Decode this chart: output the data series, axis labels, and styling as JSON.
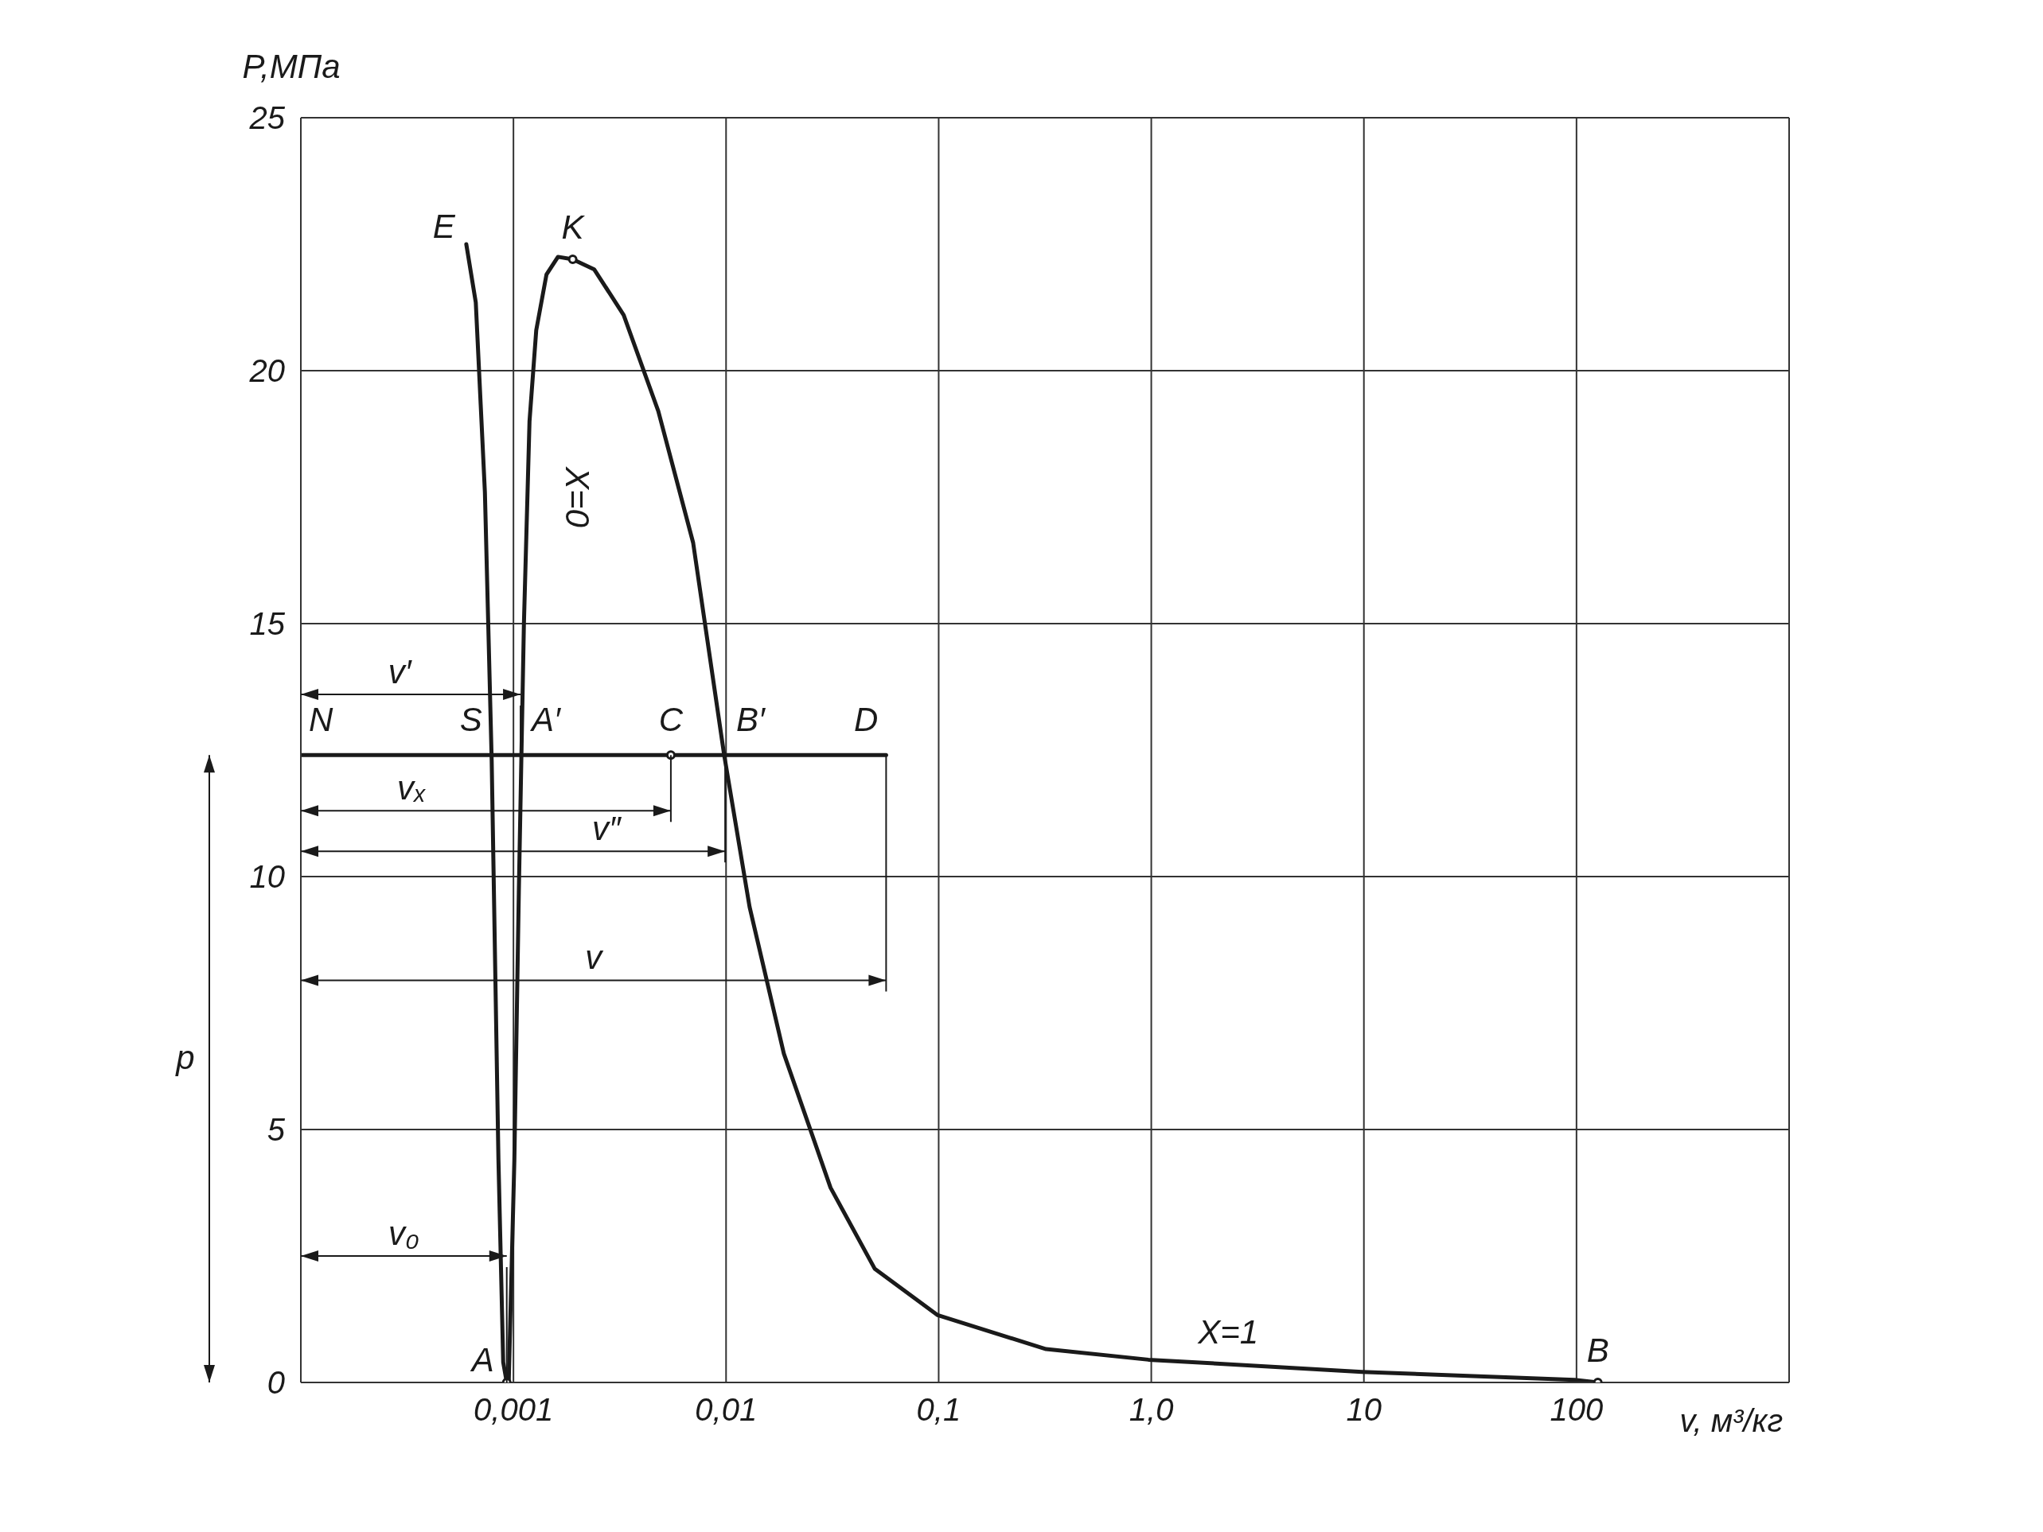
{
  "chart_data": {
    "type": "line",
    "xlabel": "v, м³/кг",
    "ylabel": "P,МПа",
    "log": "x",
    "grid": true,
    "line_style": "solid",
    "xlim": [
      0.0001,
      1000
    ],
    "ylim": [
      0,
      25
    ],
    "xticks": [
      {
        "value": 0.0001,
        "label": null
      },
      {
        "value": 0.001,
        "label": "0,001"
      },
      {
        "value": 0.01,
        "label": "0,01"
      },
      {
        "value": 0.1,
        "label": "0,1"
      },
      {
        "value": 1,
        "label": "1,0"
      },
      10,
      100,
      {
        "value": 1000,
        "label": null
      }
    ],
    "yticks": [
      0,
      5,
      10,
      15,
      20,
      25
    ],
    "series": [
      {
        "color": "#1a1a1a",
        "x": [
          0.00095,
          0.00101,
          0.00106,
          0.00112,
          0.00119,
          0.00128,
          0.00143,
          0.00162,
          0.0019
        ],
        "values": [
          0,
          4.4,
          9.7,
          15.0,
          19.0,
          20.8,
          21.9,
          22.25,
          22.2
        ]
      },
      {
        "color": "#1a1a1a",
        "x": [
          0.0019,
          0.0024,
          0.0033,
          0.0048,
          0.007,
          0.0098,
          0.0129,
          0.0187,
          0.031,
          0.05,
          0.099,
          0.32,
          0.97,
          9.8,
          98,
          126
        ],
        "values": [
          22.2,
          22.0,
          21.1,
          19.2,
          16.6,
          12.4,
          9.4,
          6.5,
          3.85,
          2.25,
          1.33,
          0.66,
          0.45,
          0.21,
          0.05,
          0
        ]
      },
      {
        "color": "#1a1a1a",
        "x": [
          0.0006,
          0.000665,
          0.000734,
          0.00079,
          0.00085,
          0.000895,
          0.00093
        ],
        "values": [
          22.5,
          21.35,
          17.6,
          12.3,
          4.4,
          0.4,
          0
        ]
      },
      {
        "color": "#1a1a1a",
        "x": [
          0.0001,
          0.0566
        ],
        "values": [
          12.4,
          12.4
        ]
      },
      {
        "type": "scatter",
        "color": "#1a1a1a",
        "marker": "circle",
        "x": [
          0.00093,
          0.0019,
          0.0055,
          126
        ],
        "values": [
          0,
          22.2,
          12.4,
          0
        ]
      }
    ],
    "annotations": [
      {
        "text": "E",
        "x": 0.0006,
        "y": 22.5
      },
      {
        "text": "K",
        "x": 0.0019,
        "y": 22.2
      },
      {
        "text": "A",
        "x": 0.00093,
        "y": 0
      },
      {
        "text": "B",
        "x": 126,
        "y": 0
      },
      {
        "text": "N",
        "x": 0.0001,
        "y": 12.4
      },
      {
        "text": "S",
        "x": 0.00079,
        "y": 12.4
      },
      {
        "text": "A′",
        "x": 0.00108,
        "y": 12.4
      },
      {
        "text": "C",
        "x": 0.0055,
        "y": 12.4
      },
      {
        "text": "B′",
        "x": 0.0099,
        "y": 12.4
      },
      {
        "text": "D",
        "x": 0.0566,
        "y": 12.4
      },
      "X=0",
      {
        "text": "X=1",
        "x": 2.3,
        "y": 0.42
      },
      "v′",
      "vₓ",
      "v″",
      "v",
      "v₀",
      "p"
    ]
  }
}
